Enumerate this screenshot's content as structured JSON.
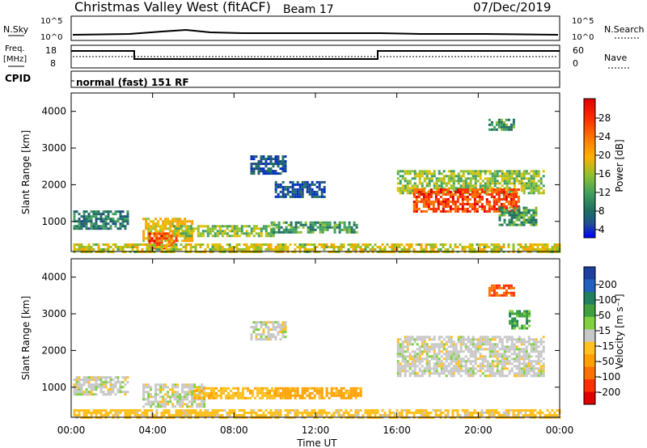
{
  "header": {
    "title": "Christmas Valley West (fitACF)",
    "beam": "Beam 17",
    "date": "07/Dec/2019"
  },
  "strip_panels": {
    "nsky": {
      "label": "N.Sky",
      "ticks": [
        "10^5",
        "10^0"
      ],
      "right_ticks": [
        "10^5",
        "10^0"
      ],
      "right_label": "N.Search"
    },
    "freq": {
      "label1": "Freq.",
      "label2": "[MHz]",
      "ticks": [
        "18",
        "8"
      ],
      "right_ticks": [
        "60",
        "0"
      ],
      "right_label": "Nave"
    },
    "cpid": {
      "label": "CPID",
      "text": "normal (fast) 151 RF"
    }
  },
  "power_panel": {
    "ylabel": "Slant Range [km]",
    "colorbar_label": "Power [dB]",
    "colorbar_ticks": [
      "28",
      "24",
      "20",
      "16",
      "12",
      "8",
      "4"
    ],
    "colorbar_colors": [
      "#e00000",
      "#ff3000",
      "#ff7000",
      "#ffa000",
      "#e0c000",
      "#90c030",
      "#40a060",
      "#207060",
      "#205080",
      "#0030c0",
      "#0000ff"
    ]
  },
  "velocity_panel": {
    "ylabel": "Slant Range [km]",
    "colorbar_label": "Velocity [m s⁻¹]",
    "colorbar_ticks": [
      "200",
      "100",
      "50",
      "15",
      "-15",
      "-50",
      "-100",
      "-200"
    ],
    "colorbar_colors": [
      "#2040a0",
      "#2060c0",
      "#208060",
      "#40a040",
      "#80d040",
      "#c8c8c8",
      "#ffc020",
      "#ffa000",
      "#ff7000",
      "#ff3000",
      "#e00000"
    ]
  },
  "xaxis": {
    "label": "Time UT",
    "ticks": [
      "00:00",
      "04:00",
      "08:00",
      "12:00",
      "16:00",
      "20:00",
      "00:00"
    ]
  },
  "chart_data": [
    {
      "type": "heatmap",
      "title": "Power",
      "x_range_hours": [
        0,
        24
      ],
      "ylim_km": [
        180,
        4500
      ],
      "yticks": [
        1000,
        2000,
        3000,
        4000
      ],
      "colorbar_range_db": [
        0,
        32
      ],
      "regions": [
        {
          "t0": 0.1,
          "t1": 2.8,
          "r0": 800,
          "r1": 1300,
          "v": 10
        },
        {
          "t0": 3.5,
          "t1": 6.0,
          "r0": 500,
          "r1": 1100,
          "v": 20
        },
        {
          "t0": 3.8,
          "t1": 5.2,
          "r0": 300,
          "r1": 700,
          "v": 28
        },
        {
          "t0": 5.0,
          "t1": 10.0,
          "r0": 600,
          "r1": 900,
          "v": 16
        },
        {
          "t0": 9.8,
          "t1": 14.0,
          "r0": 700,
          "r1": 1000,
          "v": 12
        },
        {
          "t0": 0.1,
          "t1": 24.0,
          "r0": 200,
          "r1": 400,
          "v": 18
        },
        {
          "t0": 8.8,
          "t1": 10.5,
          "r0": 2300,
          "r1": 2800,
          "v": 6
        },
        {
          "t0": 10.0,
          "t1": 12.5,
          "r0": 1700,
          "r1": 2100,
          "v": 6
        },
        {
          "t0": 16.0,
          "t1": 23.2,
          "r0": 1800,
          "r1": 2400,
          "v": 16
        },
        {
          "t0": 16.8,
          "t1": 22.0,
          "r0": 1300,
          "r1": 1900,
          "v": 28
        },
        {
          "t0": 20.5,
          "t1": 21.8,
          "r0": 3500,
          "r1": 3800,
          "v": 12
        },
        {
          "t0": 21.0,
          "t1": 22.8,
          "r0": 900,
          "r1": 1400,
          "v": 12
        }
      ]
    },
    {
      "type": "heatmap",
      "title": "Velocity",
      "x_range_hours": [
        0,
        24
      ],
      "ylim_km": [
        180,
        4500
      ],
      "yticks": [
        1000,
        2000,
        3000,
        4000
      ],
      "colorbar_range_ms": [
        -250,
        250
      ],
      "regions": [
        {
          "t0": 0.1,
          "t1": 2.8,
          "r0": 800,
          "r1": 1300,
          "v": 0
        },
        {
          "t0": 3.5,
          "t1": 6.5,
          "r0": 500,
          "r1": 1100,
          "v": 0
        },
        {
          "t0": 6.0,
          "t1": 10.0,
          "r0": 700,
          "r1": 1000,
          "v": -40
        },
        {
          "t0": 10.0,
          "t1": 14.2,
          "r0": 700,
          "r1": 1000,
          "v": -60
        },
        {
          "t0": 0.1,
          "t1": 24.0,
          "r0": 200,
          "r1": 400,
          "v": -30
        },
        {
          "t0": 8.8,
          "t1": 10.5,
          "r0": 2300,
          "r1": 2800,
          "v": 0
        },
        {
          "t0": 16.0,
          "t1": 23.2,
          "r0": 1300,
          "r1": 2400,
          "v": 0
        },
        {
          "t0": 20.5,
          "t1": 21.8,
          "r0": 3500,
          "r1": 3800,
          "v": -150
        },
        {
          "t0": 21.5,
          "t1": 22.5,
          "r0": 2600,
          "r1": 3100,
          "v": 40
        }
      ]
    }
  ]
}
